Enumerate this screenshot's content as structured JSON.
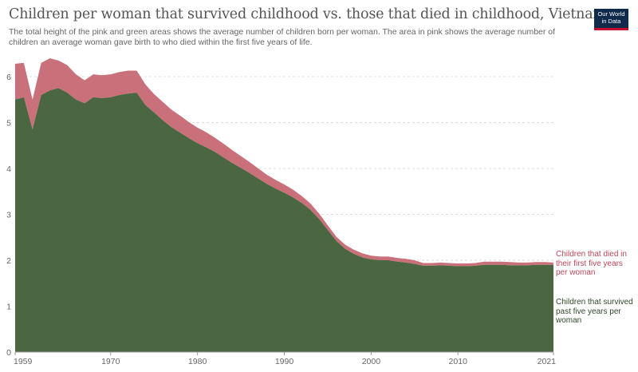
{
  "header": {
    "title": "Children per woman that survived childhood vs. those that died in childhood, Vietnam",
    "subtitle": "The total height of the pink and green areas shows the average number of children born per woman. The area in pink shows the average number of children an average woman gave birth to who died within the first five years of life.",
    "logo_line1": "Our World",
    "logo_line2": "in Data"
  },
  "colors": {
    "survived": "#4a6741",
    "died": "#c9707a",
    "died_label": "#b5475a",
    "survived_label": "#2f4a2a",
    "grid": "#dddddd"
  },
  "chart_data": {
    "type": "area",
    "stacked": true,
    "x": [
      1959,
      1960,
      1961,
      1962,
      1963,
      1964,
      1965,
      1966,
      1967,
      1968,
      1969,
      1970,
      1971,
      1972,
      1973,
      1974,
      1975,
      1976,
      1977,
      1978,
      1979,
      1980,
      1981,
      1982,
      1983,
      1984,
      1985,
      1986,
      1987,
      1988,
      1989,
      1990,
      1991,
      1992,
      1993,
      1994,
      1995,
      1996,
      1997,
      1998,
      1999,
      2000,
      2001,
      2002,
      2003,
      2004,
      2005,
      2006,
      2007,
      2008,
      2009,
      2010,
      2011,
      2012,
      2013,
      2014,
      2015,
      2016,
      2017,
      2018,
      2019,
      2020,
      2021
    ],
    "series": [
      {
        "name": "Children that survived past five years per woman",
        "values": [
          5.5,
          5.55,
          4.85,
          5.6,
          5.7,
          5.75,
          5.65,
          5.5,
          5.42,
          5.55,
          5.53,
          5.55,
          5.6,
          5.63,
          5.65,
          5.38,
          5.22,
          5.05,
          4.9,
          4.78,
          4.66,
          4.55,
          4.46,
          4.36,
          4.24,
          4.12,
          4.01,
          3.9,
          3.78,
          3.66,
          3.56,
          3.47,
          3.37,
          3.25,
          3.1,
          2.9,
          2.66,
          2.42,
          2.25,
          2.14,
          2.06,
          2.02,
          2.0,
          2.0,
          1.97,
          1.95,
          1.92,
          1.88,
          1.88,
          1.89,
          1.88,
          1.87,
          1.87,
          1.88,
          1.9,
          1.9,
          1.9,
          1.89,
          1.89,
          1.89,
          1.9,
          1.9,
          1.9
        ]
      },
      {
        "name": "Children that died in their first five years per woman",
        "values": [
          0.78,
          0.75,
          0.65,
          0.7,
          0.7,
          0.6,
          0.6,
          0.55,
          0.5,
          0.5,
          0.5,
          0.5,
          0.5,
          0.5,
          0.48,
          0.45,
          0.4,
          0.4,
          0.38,
          0.37,
          0.35,
          0.34,
          0.33,
          0.31,
          0.3,
          0.28,
          0.26,
          0.24,
          0.22,
          0.2,
          0.19,
          0.18,
          0.17,
          0.15,
          0.14,
          0.12,
          0.1,
          0.09,
          0.09,
          0.09,
          0.09,
          0.08,
          0.08,
          0.08,
          0.08,
          0.08,
          0.08,
          0.06,
          0.06,
          0.06,
          0.06,
          0.06,
          0.06,
          0.06,
          0.07,
          0.07,
          0.07,
          0.07,
          0.06,
          0.06,
          0.06,
          0.06,
          0.05
        ]
      }
    ],
    "ylim": [
      0,
      6
    ],
    "yticks": [
      0,
      1,
      2,
      3,
      4,
      5,
      6
    ],
    "xticks": [
      1959,
      1970,
      1980,
      1990,
      2000,
      2010,
      2021
    ],
    "grid": true,
    "labels": {
      "died": "Children that died in their first five years per woman",
      "survived": "Children that survived past five years per woman"
    }
  }
}
